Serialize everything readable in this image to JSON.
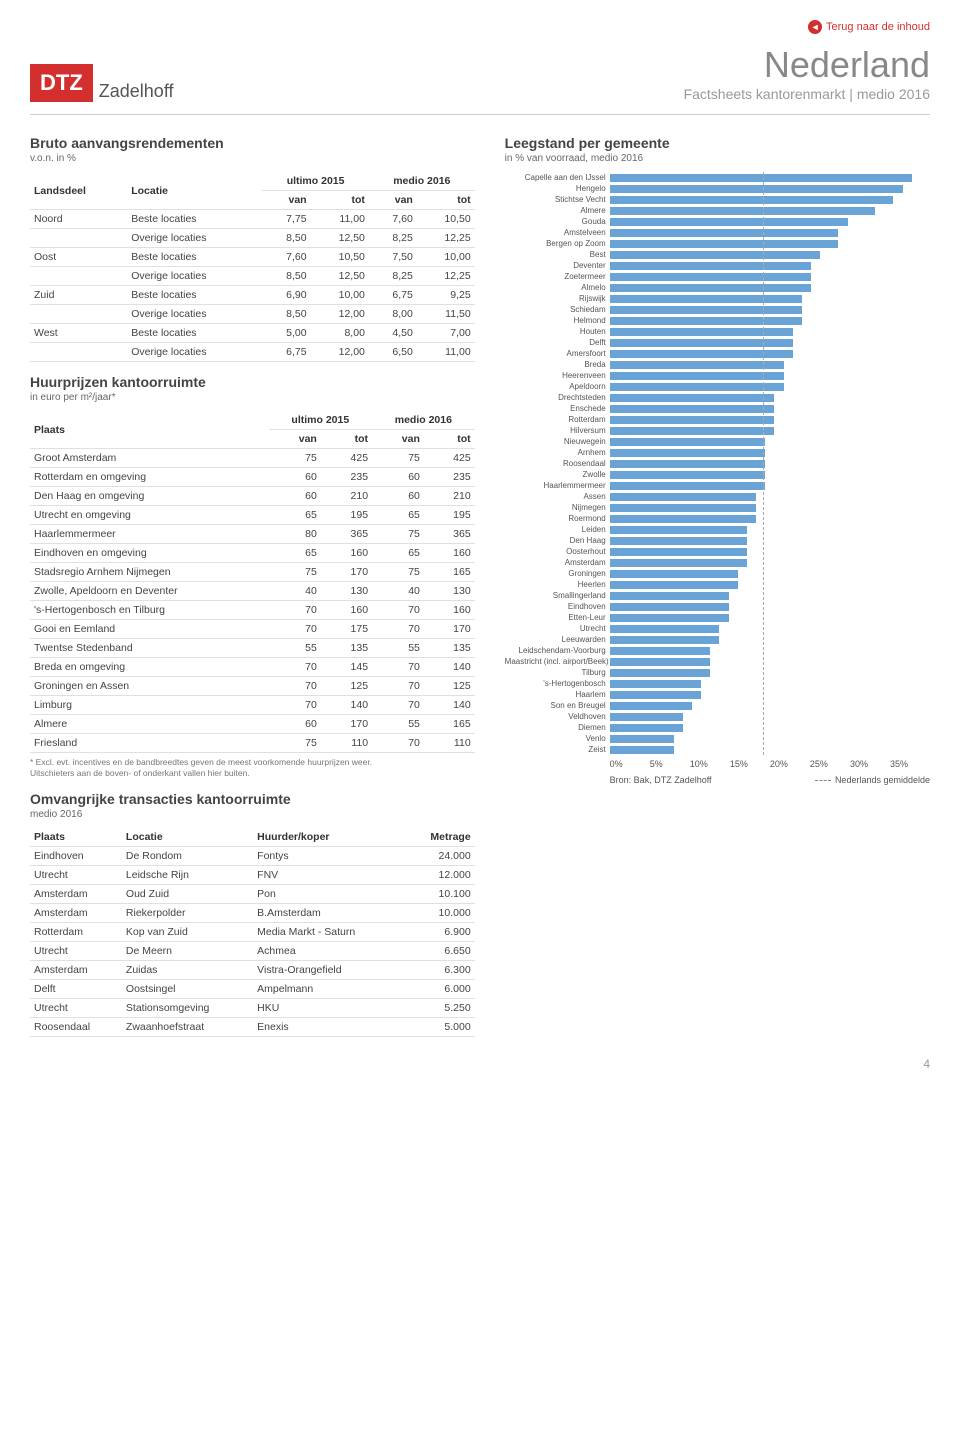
{
  "nav": {
    "back": "Terug naar de inhoud"
  },
  "logo": {
    "box": "DTZ",
    "name": "Zadelhoff"
  },
  "title": {
    "main": "Nederland",
    "sub": "Factsheets kantorenmarkt | medio 2016"
  },
  "table1": {
    "title": "Bruto aanvangsrendementen",
    "subtitle": "v.o.n. in %",
    "head": {
      "landsdeel": "Landsdeel",
      "locatie": "Locatie",
      "u15": "ultimo 2015",
      "m16": "medio 2016",
      "van": "van",
      "tot": "tot"
    },
    "rows": [
      [
        "Noord",
        "Beste locaties",
        "7,75",
        "11,00",
        "7,60",
        "10,50"
      ],
      [
        "",
        "Overige locaties",
        "8,50",
        "12,50",
        "8,25",
        "12,25"
      ],
      [
        "Oost",
        "Beste locaties",
        "7,60",
        "10,50",
        "7,50",
        "10,00"
      ],
      [
        "",
        "Overige locaties",
        "8,50",
        "12,50",
        "8,25",
        "12,25"
      ],
      [
        "Zuid",
        "Beste locaties",
        "6,90",
        "10,00",
        "6,75",
        "9,25"
      ],
      [
        "",
        "Overige locaties",
        "8,50",
        "12,00",
        "8,00",
        "11,50"
      ],
      [
        "West",
        "Beste locaties",
        "5,00",
        "8,00",
        "4,50",
        "7,00"
      ],
      [
        "",
        "Overige locaties",
        "6,75",
        "12,00",
        "6,50",
        "11,00"
      ]
    ]
  },
  "table2": {
    "title": "Huurprijzen kantoorruimte",
    "subtitle": "in euro per m²/jaar*",
    "head": {
      "plaats": "Plaats",
      "u15": "ultimo 2015",
      "m16": "medio 2016",
      "van": "van",
      "tot": "tot"
    },
    "rows": [
      [
        "Groot Amsterdam",
        "75",
        "425",
        "75",
        "425"
      ],
      [
        "Rotterdam en omgeving",
        "60",
        "235",
        "60",
        "235"
      ],
      [
        "Den Haag en omgeving",
        "60",
        "210",
        "60",
        "210"
      ],
      [
        "Utrecht en omgeving",
        "65",
        "195",
        "65",
        "195"
      ],
      [
        "Haarlemmermeer",
        "80",
        "365",
        "75",
        "365"
      ],
      [
        "Eindhoven en omgeving",
        "65",
        "160",
        "65",
        "160"
      ],
      [
        "Stadsregio Arnhem Nijmegen",
        "75",
        "170",
        "75",
        "165"
      ],
      [
        "Zwolle, Apeldoorn en Deventer",
        "40",
        "130",
        "40",
        "130"
      ],
      [
        "'s-Hertogenbosch en Tilburg",
        "70",
        "160",
        "70",
        "160"
      ],
      [
        "Gooi en Eemland",
        "70",
        "175",
        "70",
        "170"
      ],
      [
        "Twentse Stedenband",
        "55",
        "135",
        "55",
        "135"
      ],
      [
        "Breda en omgeving",
        "70",
        "145",
        "70",
        "140"
      ],
      [
        "Groningen en Assen",
        "70",
        "125",
        "70",
        "125"
      ],
      [
        "Limburg",
        "70",
        "140",
        "70",
        "140"
      ],
      [
        "Almere",
        "60",
        "170",
        "55",
        "165"
      ],
      [
        "Friesland",
        "75",
        "110",
        "70",
        "110"
      ]
    ],
    "footnote": "* Excl. evt. incentives en de bandbreedtes geven de meest voorkomende huurprijzen weer.\nUitschieters aan de boven- of onderkant vallen hier buiten."
  },
  "table3": {
    "title": "Omvangrijke transacties kantoorruimte",
    "subtitle": "medio 2016",
    "head": {
      "plaats": "Plaats",
      "locatie": "Locatie",
      "huurder": "Huurder/koper",
      "metrage": "Metrage"
    },
    "rows": [
      [
        "Eindhoven",
        "De Rondom",
        "Fontys",
        "24.000"
      ],
      [
        "Utrecht",
        "Leidsche Rijn",
        "FNV",
        "12.000"
      ],
      [
        "Amsterdam",
        "Oud Zuid",
        "Pon",
        "10.100"
      ],
      [
        "Amsterdam",
        "Riekerpolder",
        "B.Amsterdam",
        "10.000"
      ],
      [
        "Rotterdam",
        "Kop van Zuid",
        "Media Markt - Saturn",
        "6.900"
      ],
      [
        "Utrecht",
        "De Meern",
        "Achmea",
        "6.650"
      ],
      [
        "Amsterdam",
        "Zuidas",
        "Vistra-Orangefield",
        "6.300"
      ],
      [
        "Delft",
        "Oostsingel",
        "Ampelmann",
        "6.000"
      ],
      [
        "Utrecht",
        "Stationsomgeving",
        "HKU",
        "5.250"
      ],
      [
        "Roosendaal",
        "Zwaanhoefstraat",
        "Enexis",
        "5.000"
      ]
    ]
  },
  "chart": {
    "title": "Leegstand per gemeente",
    "subtitle": "in % van voorraad, medio 2016",
    "xmax": 35,
    "avg": 16,
    "bar_color": "#6aa3d5",
    "ticks": [
      "0%",
      "5%",
      "10%",
      "15%",
      "20%",
      "25%",
      "30%",
      "35%"
    ],
    "source": "Bron: Bak, DTZ Zadelhoff",
    "legend": "Nederlands gemiddelde",
    "items": [
      {
        "l": "Capelle aan den IJssel",
        "v": 33
      },
      {
        "l": "Hengelo",
        "v": 32
      },
      {
        "l": "Stichtse Vecht",
        "v": 31
      },
      {
        "l": "Almere",
        "v": 29
      },
      {
        "l": "Gouda",
        "v": 26
      },
      {
        "l": "Amstelveen",
        "v": 25
      },
      {
        "l": "Bergen op Zoom",
        "v": 25
      },
      {
        "l": "Best",
        "v": 23
      },
      {
        "l": "Deventer",
        "v": 22
      },
      {
        "l": "Zoetermeer",
        "v": 22
      },
      {
        "l": "Almelo",
        "v": 22
      },
      {
        "l": "Rijswijk",
        "v": 21
      },
      {
        "l": "Schiedam",
        "v": 21
      },
      {
        "l": "Helmond",
        "v": 21
      },
      {
        "l": "Houten",
        "v": 20
      },
      {
        "l": "Delft",
        "v": 20
      },
      {
        "l": "Amersfoort",
        "v": 20
      },
      {
        "l": "Breda",
        "v": 19
      },
      {
        "l": "Heerenveen",
        "v": 19
      },
      {
        "l": "Apeldoorn",
        "v": 19
      },
      {
        "l": "Drechtsteden",
        "v": 18
      },
      {
        "l": "Enschede",
        "v": 18
      },
      {
        "l": "Rotterdam",
        "v": 18
      },
      {
        "l": "Hilversum",
        "v": 18
      },
      {
        "l": "Nieuwegein",
        "v": 17
      },
      {
        "l": "Arnhem",
        "v": 17
      },
      {
        "l": "Roosendaal",
        "v": 17
      },
      {
        "l": "Zwolle",
        "v": 17
      },
      {
        "l": "Haarlemmermeer",
        "v": 17
      },
      {
        "l": "Assen",
        "v": 16
      },
      {
        "l": "Nijmegen",
        "v": 16
      },
      {
        "l": "Roermond",
        "v": 16
      },
      {
        "l": "Leiden",
        "v": 15
      },
      {
        "l": "Den Haag",
        "v": 15
      },
      {
        "l": "Oosterhout",
        "v": 15
      },
      {
        "l": "Amsterdam",
        "v": 15
      },
      {
        "l": "Groningen",
        "v": 14
      },
      {
        "l": "Heerlen",
        "v": 14
      },
      {
        "l": "Smallingerland",
        "v": 13
      },
      {
        "l": "Eindhoven",
        "v": 13
      },
      {
        "l": "Etten-Leur",
        "v": 13
      },
      {
        "l": "Utrecht",
        "v": 12
      },
      {
        "l": "Leeuwarden",
        "v": 12
      },
      {
        "l": "Leidschendam-Voorburg",
        "v": 11
      },
      {
        "l": "Maastricht (incl. airport/Beek)",
        "v": 11
      },
      {
        "l": "Tilburg",
        "v": 11
      },
      {
        "l": "'s-Hertogenbosch",
        "v": 10
      },
      {
        "l": "Haarlem",
        "v": 10
      },
      {
        "l": "Son en Breugel",
        "v": 9
      },
      {
        "l": "Veldhoven",
        "v": 8
      },
      {
        "l": "Diemen",
        "v": 8
      },
      {
        "l": "Venlo",
        "v": 7
      },
      {
        "l": "Zeist",
        "v": 7
      }
    ]
  },
  "page": "4"
}
